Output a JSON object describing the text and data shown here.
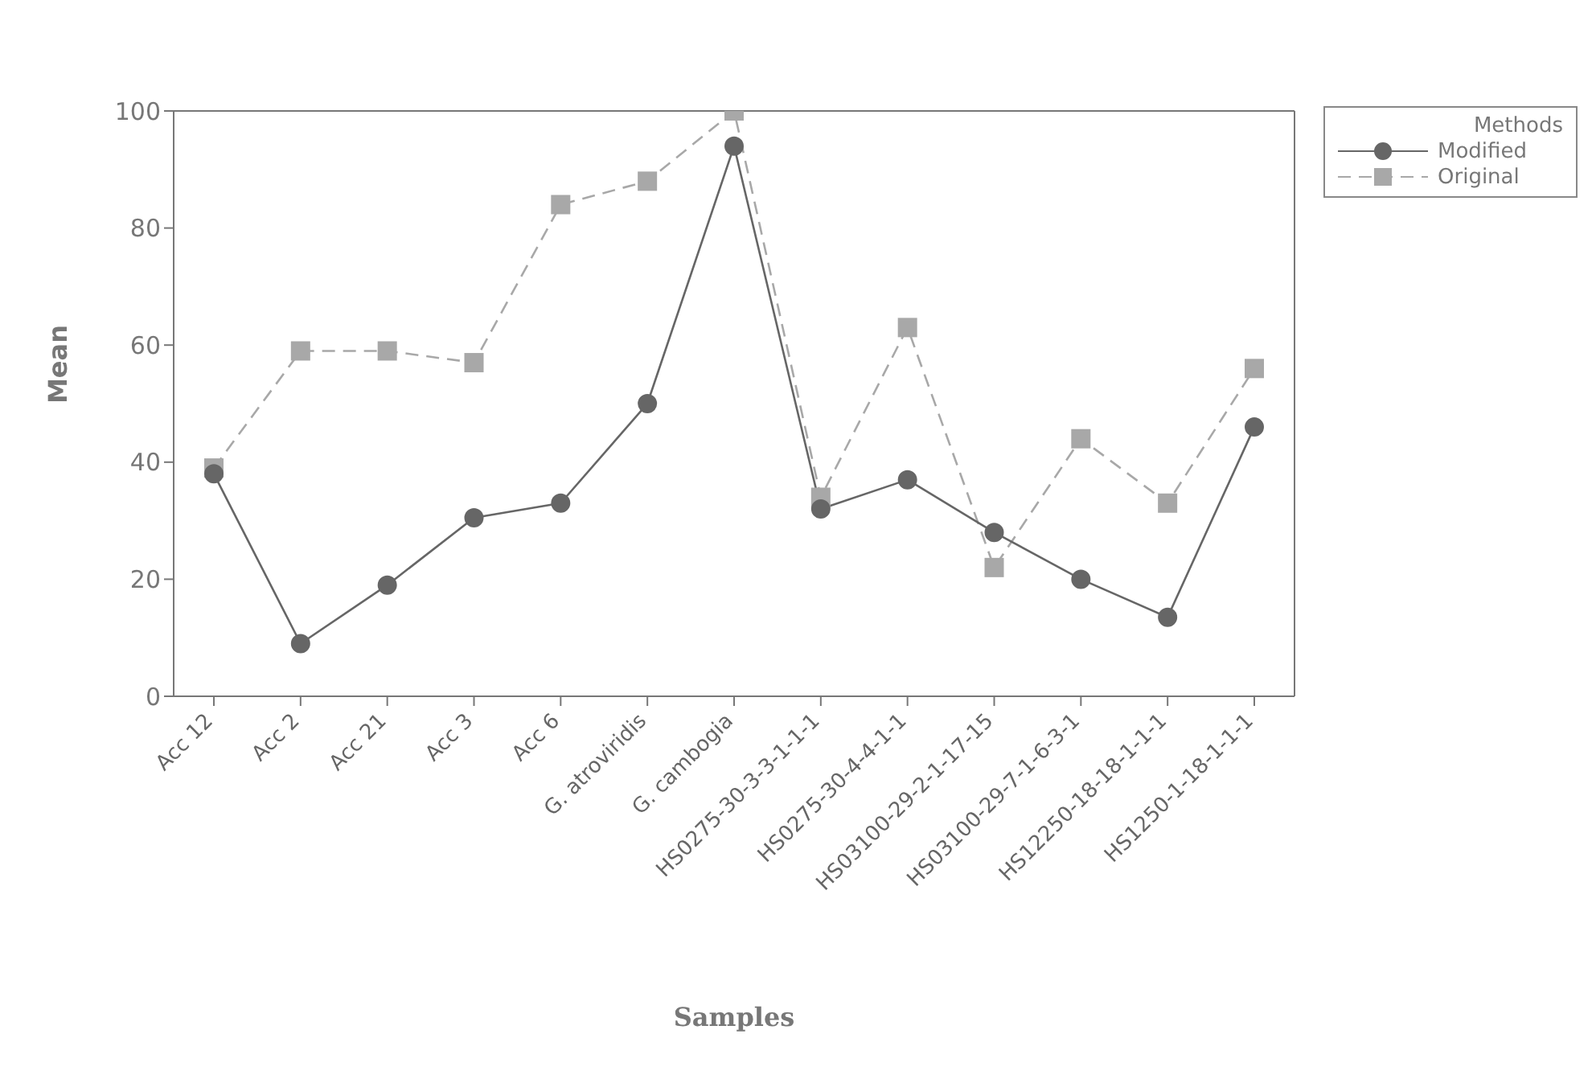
{
  "chart_data": {
    "type": "line",
    "xlabel": "Samples",
    "ylabel": "Mean",
    "legend_title": "Methods",
    "categories": [
      "Acc 12",
      "Acc 2",
      "Acc 21",
      "Acc 3",
      "Acc 6",
      "G. atroviridis",
      "G. cambogia",
      "HS0275-30-3-3-1-1-1",
      "HS0275-30-4-4-1-1",
      "HS03100-29-2-1-17-15",
      "HS03100-29-7-1-6-3-1",
      "HS12250-18-18-1-1-1",
      "HS1250-1-18-1-1-1"
    ],
    "series": [
      {
        "name": "Modified",
        "color": "#666666",
        "marker": "circle",
        "line_style": "solid",
        "values": [
          38,
          9,
          19,
          30.5,
          33,
          50,
          94,
          32,
          37,
          28,
          20,
          13.5,
          46
        ]
      },
      {
        "name": "Original",
        "color": "#a8a8a8",
        "marker": "square",
        "line_style": "dashed",
        "values": [
          39,
          59,
          59,
          57,
          84,
          88,
          100,
          34,
          63,
          22,
          44,
          33,
          56
        ]
      }
    ],
    "ylim": [
      0,
      100
    ],
    "yticks": [
      0,
      20,
      40,
      60,
      80,
      100
    ],
    "grid": false,
    "legend": "top right"
  }
}
